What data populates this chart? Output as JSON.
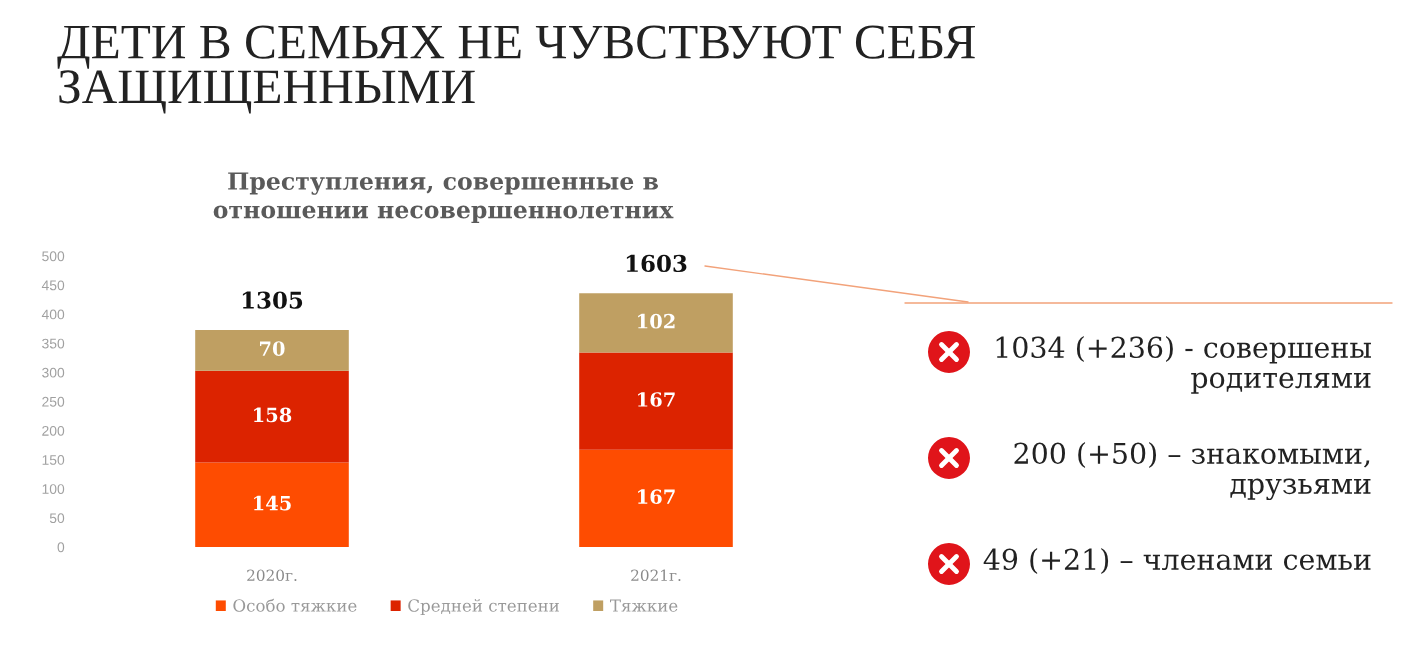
{
  "chart_data": {
    "type": "bar",
    "stacked": true,
    "title": "ДЕТИ В СЕМЬЯХ НЕ ЧУВСТВУЮТ СЕБЯ\nЗАЩИЩЕННЫМИ",
    "subtitle": "Преступления, совершенные в\nотношении несовершеннолетних",
    "categories": [
      "2020г.",
      "2021г."
    ],
    "series": [
      {
        "name": "Особо тяжкие",
        "color": "#fe4c01",
        "values": [
          145,
          167
        ]
      },
      {
        "name": "Средней степени",
        "color": "#dc2300",
        "values": [
          158,
          167
        ]
      },
      {
        "name": "Тяжкие",
        "color": "#bf9f62",
        "values": [
          70,
          102
        ]
      }
    ],
    "ylim": [
      0,
      500
    ],
    "yticks": [
      0,
      50,
      100,
      150,
      200,
      250,
      300,
      350,
      400,
      450,
      500
    ],
    "data_labels": true,
    "legend": "bottom",
    "annotations": [
      {
        "text": "1305",
        "x": "2020г.",
        "y": 373
      },
      {
        "text": "1603",
        "x": "2021г.",
        "y": 436
      },
      "1034 (+236) - совершены\nродителями",
      "200 (+50) – знакомыми,\nдрузьями",
      "49 (+21) – членами семьи"
    ]
  }
}
